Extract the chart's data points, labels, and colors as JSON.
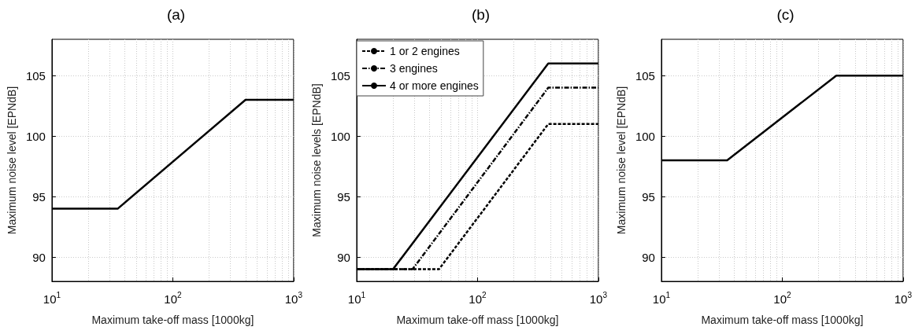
{
  "chart_data": [
    {
      "type": "line",
      "title": "(a)",
      "xlabel": "Maximum take-off mass [1000kg]",
      "ylabel": "Maximum noise level [EPNdB]",
      "log": "x",
      "grid": true,
      "legend": false,
      "marker": "none",
      "line_style": "solid",
      "xlim": [
        10,
        1000
      ],
      "xticks": [
        {
          "value": 10,
          "label": "10$^{1}$"
        },
        {
          "value": 100,
          "label": "10$^{2}$"
        },
        {
          "value": 1000,
          "label": "10$^{3}$"
        }
      ],
      "ylim": [
        88,
        108
      ],
      "yticks": [
        90,
        95,
        100,
        105
      ],
      "series": [
        {
          "color": "#000000",
          "x": [
            10,
            35,
            400,
            1000
          ],
          "values": [
            94,
            94,
            103,
            103
          ]
        }
      ]
    },
    {
      "type": "line",
      "title": "(b)",
      "xlabel": "Maximum take-off mass [1000kg]",
      "ylabel": "Maximum noise levels [EPNdB]",
      "log": "x",
      "grid": true,
      "legend": "top left",
      "marker": "none",
      "xlim": [
        10,
        1000
      ],
      "xticks": [
        {
          "value": 10,
          "label": "10$^{1}$"
        },
        {
          "value": 100,
          "label": "10$^{2}$"
        },
        {
          "value": 1000,
          "label": "10$^{3}$"
        }
      ],
      "ylim": [
        88,
        108
      ],
      "yticks": [
        90,
        95,
        100,
        105
      ],
      "series": [
        {
          "name": "1 or 2 engines",
          "color": "#000000",
          "line_style": "dashed",
          "x": [
            10,
            48,
            385,
            1000
          ],
          "values": [
            89,
            89,
            101,
            101
          ]
        },
        {
          "name": "3 engines",
          "color": "#000000",
          "line_style": "dashdot",
          "x": [
            10,
            29,
            385,
            1000
          ],
          "values": [
            89,
            89,
            104,
            104
          ]
        },
        {
          "name": "4 or more engines",
          "color": "#000000",
          "line_style": "solid",
          "x": [
            10,
            20,
            385,
            1000
          ],
          "values": [
            89,
            89,
            106,
            106
          ]
        }
      ]
    },
    {
      "type": "line",
      "title": "(c)",
      "xlabel": "Maximum take-off mass [1000kg]",
      "ylabel": "Maximum noise level [EPNdB]",
      "log": "x",
      "grid": true,
      "legend": false,
      "marker": "none",
      "line_style": "solid",
      "xlim": [
        10,
        1000
      ],
      "xticks": [
        {
          "value": 10,
          "label": "10$^{1}$"
        },
        {
          "value": 100,
          "label": "10$^{2}$"
        },
        {
          "value": 1000,
          "label": "10$^{3}$"
        }
      ],
      "ylim": [
        88,
        108
      ],
      "yticks": [
        90,
        95,
        100,
        105
      ],
      "series": [
        {
          "color": "#000000",
          "x": [
            10,
            35,
            280,
            1000
          ],
          "values": [
            98,
            98,
            105,
            105
          ]
        }
      ]
    }
  ]
}
